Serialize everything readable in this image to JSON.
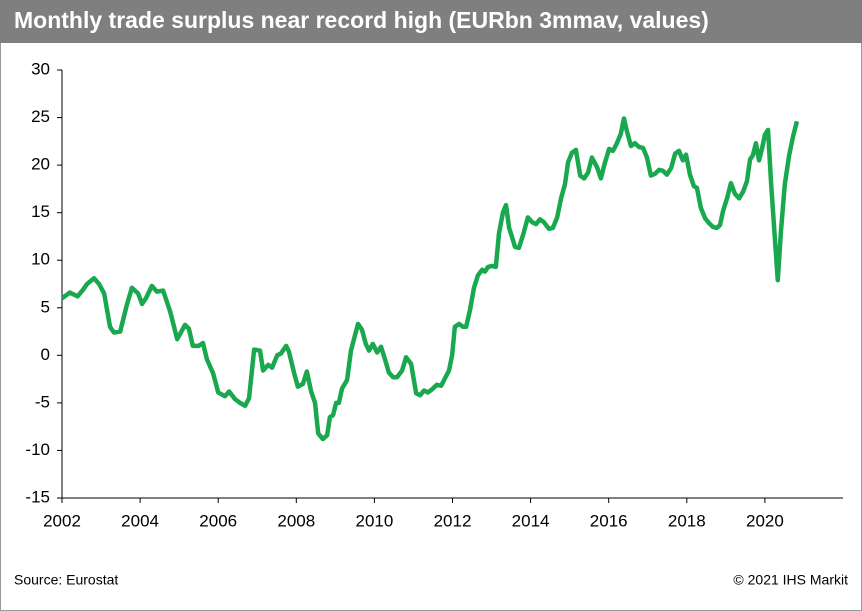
{
  "chart_data": {
    "type": "line",
    "title": "Monthly trade surplus near record high (EURbn 3mmav, values)",
    "source": "Source: Eurostat",
    "credit": "© 2021 IHS Markit",
    "xlim": [
      2002,
      2022
    ],
    "xticks": [
      2002,
      2004,
      2006,
      2008,
      2010,
      2012,
      2014,
      2016,
      2018,
      2020
    ],
    "ylim": [
      -15,
      30
    ],
    "yticks": [
      -15,
      -10,
      -5,
      0,
      5,
      10,
      15,
      20,
      25,
      30
    ],
    "grid": false,
    "series": [
      {
        "name": "Trade surplus",
        "color": "#1aa84f",
        "x": [
          2002.0,
          2002.2,
          2002.4,
          2002.54,
          2002.64,
          2002.82,
          2002.95,
          2003.08,
          2003.23,
          2003.33,
          2003.49,
          2003.66,
          2003.79,
          2003.95,
          2004.05,
          2004.15,
          2004.3,
          2004.43,
          2004.59,
          2004.77,
          2004.95,
          2005.15,
          2005.25,
          2005.35,
          2005.5,
          2005.61,
          2005.71,
          2005.87,
          2006.0,
          2006.17,
          2006.28,
          2006.43,
          2006.56,
          2006.69,
          2006.79,
          2006.92,
          2007.07,
          2007.15,
          2007.28,
          2007.38,
          2007.51,
          2007.61,
          2007.74,
          2007.81,
          2007.94,
          2008.04,
          2008.17,
          2008.27,
          2008.38,
          2008.48,
          2008.56,
          2008.68,
          2008.79,
          2008.86,
          2008.94,
          2009.02,
          2009.09,
          2009.17,
          2009.3,
          2009.4,
          2009.58,
          2009.68,
          2009.78,
          2009.86,
          2009.96,
          2010.07,
          2010.17,
          2010.27,
          2010.37,
          2010.48,
          2010.58,
          2010.71,
          2010.81,
          2010.94,
          2011.07,
          2011.17,
          2011.27,
          2011.37,
          2011.47,
          2011.6,
          2011.71,
          2011.81,
          2011.91,
          2011.99,
          2012.06,
          2012.17,
          2012.27,
          2012.35,
          2012.45,
          2012.55,
          2012.65,
          2012.76,
          2012.83,
          2012.91,
          2013.01,
          2013.11,
          2013.19,
          2013.29,
          2013.37,
          2013.45,
          2013.52,
          2013.6,
          2013.7,
          2013.81,
          2013.93,
          2014.04,
          2014.14,
          2014.24,
          2014.34,
          2014.47,
          2014.57,
          2014.68,
          2014.78,
          2014.88,
          2014.96,
          2015.06,
          2015.16,
          2015.27,
          2015.37,
          2015.47,
          2015.57,
          2015.7,
          2015.8,
          2015.9,
          2016.01,
          2016.11,
          2016.21,
          2016.31,
          2016.39,
          2016.47,
          2016.57,
          2016.67,
          2016.78,
          2016.88,
          2016.98,
          2017.08,
          2017.19,
          2017.29,
          2017.39,
          2017.49,
          2017.6,
          2017.7,
          2017.8,
          2017.9,
          2017.98,
          2018.08,
          2018.18,
          2018.26,
          2018.36,
          2018.47,
          2018.57,
          2018.67,
          2018.77,
          2018.85,
          2018.93,
          2019.03,
          2019.13,
          2019.23,
          2019.34,
          2019.44,
          2019.54,
          2019.62,
          2019.69,
          2019.77,
          2019.85,
          2019.93,
          2020.0,
          2020.08,
          2020.16,
          2020.26,
          2020.33,
          2020.41,
          2020.51,
          2020.62,
          2020.72,
          2020.82
        ],
        "values": [
          6.0,
          6.6,
          6.2,
          6.9,
          7.5,
          8.1,
          7.5,
          6.5,
          3.0,
          2.4,
          2.5,
          5.3,
          7.1,
          6.5,
          5.4,
          6.0,
          7.3,
          6.7,
          6.8,
          4.6,
          1.7,
          3.2,
          2.8,
          1.0,
          1.0,
          1.3,
          -0.4,
          -1.9,
          -3.9,
          -4.3,
          -3.8,
          -4.6,
          -5.0,
          -5.3,
          -4.5,
          0.6,
          0.5,
          -1.6,
          -1.0,
          -1.3,
          0.0,
          0.2,
          1.0,
          0.4,
          -1.8,
          -3.3,
          -3.0,
          -1.7,
          -3.8,
          -5.0,
          -8.2,
          -8.8,
          -8.4,
          -6.5,
          -6.3,
          -5.0,
          -5.0,
          -3.5,
          -2.6,
          0.5,
          3.3,
          2.7,
          1.2,
          0.5,
          1.2,
          0.3,
          0.9,
          -0.4,
          -1.8,
          -2.3,
          -2.3,
          -1.6,
          -0.2,
          -0.9,
          -4.0,
          -4.2,
          -3.7,
          -3.9,
          -3.6,
          -3.1,
          -3.2,
          -2.4,
          -1.6,
          0.0,
          3.0,
          3.3,
          3.0,
          3.0,
          4.8,
          7.1,
          8.4,
          9.0,
          8.8,
          9.3,
          9.4,
          9.3,
          12.8,
          15.0,
          15.8,
          13.4,
          12.5,
          11.4,
          11.3,
          12.7,
          14.5,
          14.0,
          13.8,
          14.3,
          14.0,
          13.3,
          13.4,
          14.5,
          16.5,
          18.0,
          20.3,
          21.3,
          21.6,
          18.9,
          18.6,
          19.2,
          20.8,
          19.8,
          18.6,
          20.2,
          21.7,
          21.5,
          22.3,
          23.3,
          24.9,
          23.5,
          22.0,
          22.3,
          21.9,
          21.8,
          20.8,
          18.9,
          19.1,
          19.5,
          19.4,
          19.0,
          19.7,
          21.2,
          21.5,
          20.5,
          21.1,
          19.0,
          17.8,
          17.6,
          15.5,
          14.4,
          13.9,
          13.5,
          13.4,
          13.7,
          15.2,
          16.5,
          18.1,
          17.0,
          16.5,
          17.2,
          18.3,
          20.6,
          21.0,
          22.3,
          20.5,
          21.8,
          23.2,
          23.7,
          18.0,
          12.0,
          7.9,
          13.0,
          18.0,
          21.0,
          23.0,
          24.6
        ]
      }
    ]
  }
}
